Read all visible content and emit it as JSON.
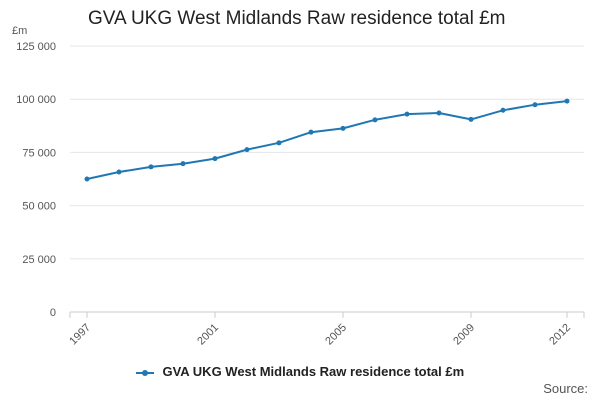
{
  "chart_data": {
    "type": "line",
    "title": "GVA UKG West Midlands Raw residence total £m",
    "ylabel": "£m",
    "xlabel": "",
    "x": [
      1997,
      1998,
      1999,
      2000,
      2001,
      2002,
      2003,
      2004,
      2005,
      2006,
      2007,
      2008,
      2009,
      2010,
      2011,
      2012
    ],
    "x_tick_labels": [
      "1997",
      "2001",
      "2005",
      "2009",
      "2012"
    ],
    "x_tick_values": [
      1997,
      2001,
      2005,
      2009,
      2012
    ],
    "y_tick_labels": [
      "0",
      "25 000",
      "50 000",
      "75 000",
      "100 000",
      "125 000"
    ],
    "y_tick_values": [
      0,
      25000,
      50000,
      75000,
      100000,
      125000
    ],
    "ylim": [
      0,
      125000
    ],
    "grid": "horizontal",
    "legend_position": "bottom-center",
    "series": [
      {
        "name": "GVA UKG West Midlands Raw residence total £m",
        "color": "#1f78b4",
        "values": [
          62500,
          65800,
          68200,
          69700,
          72100,
          76300,
          79500,
          84500,
          86300,
          90300,
          93000,
          93500,
          90500,
          94800,
          97400,
          99100
        ]
      }
    ],
    "source_label": "Source:"
  }
}
